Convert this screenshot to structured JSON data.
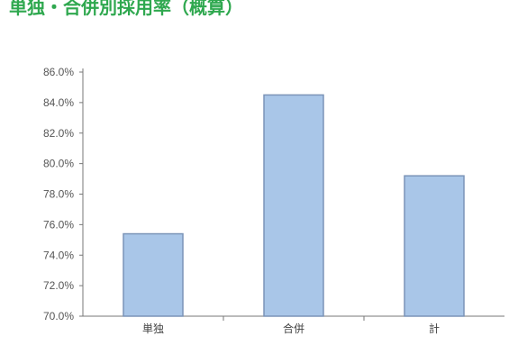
{
  "chart_data": {
    "type": "bar",
    "title": "単独・合併別採用率（概算）",
    "categories": [
      "単独",
      "合併",
      "計"
    ],
    "values": [
      75.4,
      84.5,
      79.2
    ],
    "ylim": [
      70.0,
      86.0
    ],
    "yticks": [
      "70.0%",
      "72.0%",
      "74.0%",
      "76.0%",
      "78.0%",
      "80.0%",
      "82.0%",
      "84.0%",
      "86.0%"
    ],
    "grid": false,
    "legend": "none",
    "colors": {
      "bar_fill": "#a9c6e8",
      "bar_stroke": "#7b94b8",
      "axis": "#777777",
      "title": "#2fa84f"
    }
  }
}
